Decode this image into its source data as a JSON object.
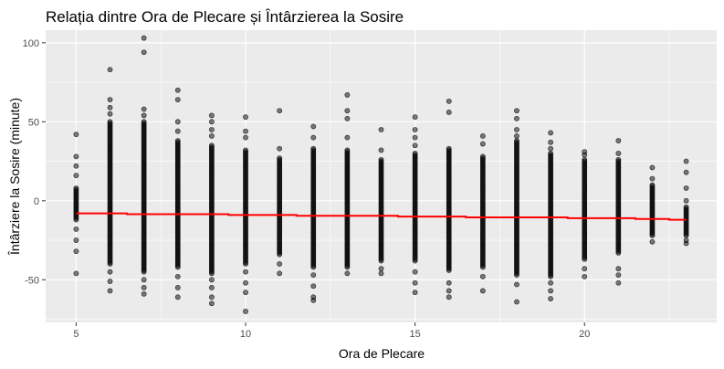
{
  "chart_data": {
    "type": "scatter",
    "title": "Relația dintre Ora de Plecare și Întârzierea la Sosire",
    "xlabel": "Ora de Plecare",
    "ylabel": "Întârziere la Sosire (minute)",
    "xlim": [
      4.1,
      23.9
    ],
    "ylim": [
      -77,
      108
    ],
    "x_ticks": [
      5,
      10,
      15,
      20
    ],
    "y_ticks": [
      -50,
      0,
      50,
      100
    ],
    "grid": true,
    "legend": "none",
    "point_color": "#000000",
    "point_opacity": 0.5,
    "trend_color": "#ff0000",
    "trend_line": {
      "x": [
        5,
        6,
        7,
        8,
        9,
        10,
        11,
        12,
        13,
        14,
        15,
        16,
        17,
        18,
        19,
        20,
        21,
        22,
        23
      ],
      "y": [
        -8,
        -8,
        -8.5,
        -8.5,
        -8.5,
        -9,
        -9,
        -9.5,
        -9.5,
        -9.5,
        -10,
        -10,
        -10.5,
        -10.5,
        -10.5,
        -11,
        -11,
        -11.5,
        -12
      ]
    },
    "points_by_hour": [
      {
        "x": 5,
        "dense_min": -12,
        "dense_max": 8,
        "outliers": [
          42,
          28,
          22,
          16,
          -18,
          -25,
          -32,
          -46
        ]
      },
      {
        "x": 6,
        "dense_min": -40,
        "dense_max": 50,
        "outliers": [
          83,
          64,
          59,
          55,
          -45,
          -51,
          -57
        ]
      },
      {
        "x": 7,
        "dense_min": -45,
        "dense_max": 50,
        "outliers": [
          103,
          94,
          58,
          54,
          -50,
          -55,
          -59
        ]
      },
      {
        "x": 8,
        "dense_min": -42,
        "dense_max": 38,
        "outliers": [
          70,
          64,
          50,
          44,
          -48,
          -55,
          -61
        ]
      },
      {
        "x": 9,
        "dense_min": -46,
        "dense_max": 35,
        "outliers": [
          54,
          50,
          45,
          41,
          -50,
          -55,
          -61,
          -65
        ]
      },
      {
        "x": 10,
        "dense_min": -40,
        "dense_max": 32,
        "outliers": [
          53,
          44,
          40,
          -45,
          -52,
          -58,
          -70
        ]
      },
      {
        "x": 11,
        "dense_min": -34,
        "dense_max": 27,
        "outliers": [
          57,
          33,
          -40,
          -46
        ]
      },
      {
        "x": 12,
        "dense_min": -42,
        "dense_max": 33,
        "outliers": [
          47,
          40,
          -47,
          -54,
          -61,
          -63
        ]
      },
      {
        "x": 13,
        "dense_min": -42,
        "dense_max": 32,
        "outliers": [
          67,
          57,
          52,
          40,
          -46
        ]
      },
      {
        "x": 14,
        "dense_min": -38,
        "dense_max": 26,
        "outliers": [
          45,
          32,
          -43,
          -46
        ]
      },
      {
        "x": 15,
        "dense_min": -38,
        "dense_max": 30,
        "outliers": [
          53,
          45,
          40,
          35,
          -45,
          -52,
          -58
        ]
      },
      {
        "x": 16,
        "dense_min": -44,
        "dense_max": 33,
        "outliers": [
          63,
          56,
          -52,
          -57,
          -61
        ]
      },
      {
        "x": 17,
        "dense_min": -42,
        "dense_max": 28,
        "outliers": [
          41,
          36,
          -48,
          -57
        ]
      },
      {
        "x": 18,
        "dense_min": -47,
        "dense_max": 38,
        "outliers": [
          57,
          52,
          45,
          41,
          -53,
          -64
        ]
      },
      {
        "x": 19,
        "dense_min": -48,
        "dense_max": 30,
        "outliers": [
          43,
          37,
          33,
          -52,
          -57,
          -62
        ]
      },
      {
        "x": 20,
        "dense_min": -37,
        "dense_max": 26,
        "outliers": [
          31,
          29,
          -43,
          -48
        ]
      },
      {
        "x": 21,
        "dense_min": -33,
        "dense_max": 26,
        "outliers": [
          38,
          30,
          -43,
          -47,
          -52
        ]
      },
      {
        "x": 22,
        "dense_min": -22,
        "dense_max": 10,
        "outliers": [
          21,
          14,
          -26
        ]
      },
      {
        "x": 23,
        "dense_min": -22,
        "dense_max": -5,
        "outliers": [
          25,
          18,
          8,
          0,
          -4,
          -25,
          -27
        ]
      }
    ]
  }
}
